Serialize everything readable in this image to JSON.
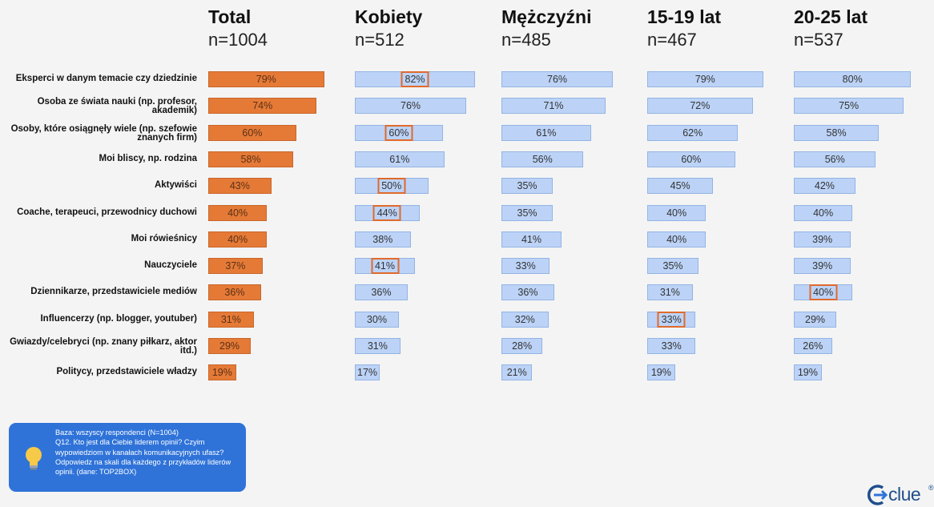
{
  "chart_data": {
    "type": "bar",
    "orientation": "horizontal",
    "value_unit": "%",
    "categories": [
      "Eksperci w danym temacie czy dziedzinie",
      "Osoba ze świata nauki (np. profesor, akademik)",
      "Osoby, które osiągnęły wiele (np. szefowie znanych firm)",
      "Moi bliscy, np. rodzina",
      "Aktywiści",
      "Coache, terapeuci, przewodnicy duchowi",
      "Moi rówieśnicy",
      "Nauczyciele",
      "Dziennikarze, przedstawiciele mediów",
      "Influencerzy (np. blogger, youtuber)",
      "Gwiazdy/celebryci (np. znany piłkarz, aktor itd.)",
      "Politycy, przedstawiciele władzy"
    ],
    "series": [
      {
        "name": "Total",
        "n_label": "n=1004",
        "color": "#e57a37",
        "values": [
          79,
          74,
          60,
          58,
          43,
          40,
          40,
          37,
          36,
          31,
          29,
          19
        ],
        "highlight": []
      },
      {
        "name": "Kobiety",
        "n_label": "n=512",
        "color": "#bcd3f7",
        "values": [
          82,
          76,
          60,
          61,
          50,
          44,
          38,
          41,
          36,
          30,
          31,
          17
        ],
        "highlight": [
          0,
          2,
          4,
          5,
          7
        ]
      },
      {
        "name": "Mężczyźni",
        "n_label": "n=485",
        "color": "#bcd3f7",
        "values": [
          76,
          71,
          61,
          56,
          35,
          35,
          41,
          33,
          36,
          32,
          28,
          21
        ],
        "highlight": []
      },
      {
        "name": "15-19 lat",
        "n_label": "n=467",
        "color": "#bcd3f7",
        "values": [
          79,
          72,
          62,
          60,
          45,
          40,
          40,
          35,
          31,
          33,
          33,
          19
        ],
        "highlight": [
          9
        ]
      },
      {
        "name": "20-25 lat",
        "n_label": "n=537",
        "color": "#bcd3f7",
        "values": [
          80,
          75,
          58,
          56,
          42,
          40,
          39,
          39,
          40,
          29,
          26,
          19
        ],
        "highlight": [
          8
        ]
      }
    ],
    "xlim": [
      0,
      100
    ],
    "grid": false,
    "legend": "none"
  },
  "note": {
    "lines": [
      "Baza: wszyscy respondenci (N=1004)",
      "Q12. Kto jest dla Ciebie liderem opinii? Czyim wypowiedziom w kanałach komunikacyjnych ufasz?",
      "Odpowiedz na skali dla każdego z przykładów liderów opinii. (dane: TOP2BOX)"
    ],
    "icon": "lightbulb-icon"
  },
  "logo": {
    "text": "clue",
    "mark": "®",
    "icon": "clue-arrow-icon"
  }
}
